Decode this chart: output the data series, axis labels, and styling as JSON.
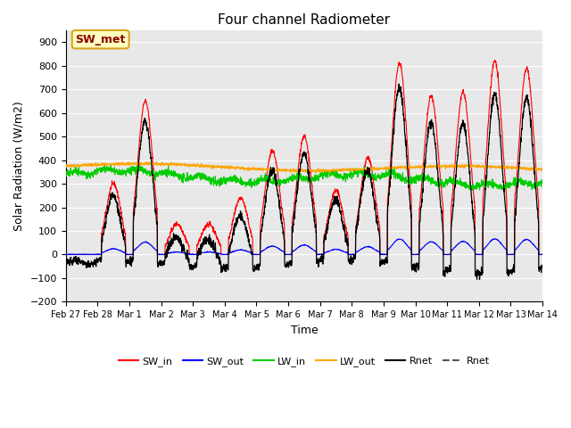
{
  "title": "Four channel Radiometer",
  "xlabel": "Time",
  "ylabel": "Solar Radiation (W/m2)",
  "ylim": [
    -200,
    950
  ],
  "yticks": [
    -200,
    -100,
    0,
    100,
    200,
    300,
    400,
    500,
    600,
    700,
    800,
    900
  ],
  "date_labels": [
    "Feb 27",
    "Feb 28",
    "Mar 1",
    "Mar 2",
    "Mar 3",
    "Mar 4",
    "Mar 5",
    "Mar 6",
    "Mar 7",
    "Mar 8",
    "Mar 9",
    "Mar 10",
    "Mar 11",
    "Mar 12",
    "Mar 13",
    "Mar 14"
  ],
  "n_days": 15,
  "annotation_text": "SW_met",
  "annotation_color": "#8B0000",
  "annotation_bg": "#FFFFC0",
  "annotation_border": "#DAA520",
  "background_color": "#E8E8E8",
  "colors": {
    "SW_in": "#FF0000",
    "SW_out": "#0000FF",
    "LW_in": "#00CC00",
    "LW_out": "#FFA500",
    "Rnet_black": "#000000",
    "Rnet_dark": "#555555"
  },
  "legend_entries": [
    "SW_in",
    "SW_out",
    "LW_in",
    "LW_out",
    "Rnet",
    "Rnet"
  ],
  "legend_colors": [
    "#FF0000",
    "#0000FF",
    "#00CC00",
    "#FFA500",
    "#000000",
    "#555555"
  ],
  "legend_styles": [
    "-",
    "-",
    "-",
    "-",
    "-",
    "--"
  ]
}
